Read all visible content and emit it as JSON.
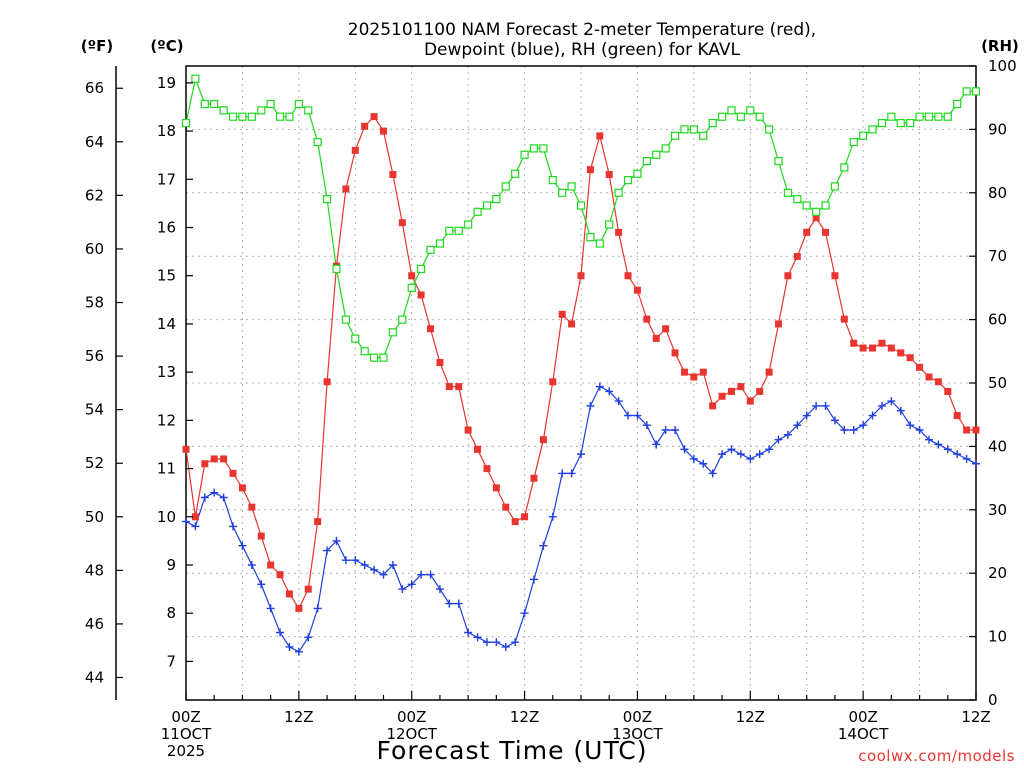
{
  "chart_data": {
    "type": "line",
    "title": "2025101100 NAM Forecast 2-meter Temperature (red), Dewpoint (blue), RH (green) for KAVL",
    "title_lines": [
      "2025101100 NAM Forecast 2-meter Temperature (red),",
      "Dewpoint (blue), RH (green) for KAVL"
    ],
    "xlabel": "Forecast Time (UTC)",
    "credit": "coolwx.com/models",
    "axis_units": {
      "fahrenheit": "(ºF)",
      "celsius": "(ºC)",
      "rh": "(RH)"
    },
    "x_unit": "forecast hour",
    "xlim": [
      0,
      84
    ],
    "x_ticks": [
      {
        "hour": 0,
        "lines": [
          "00Z",
          "11OCT",
          "2025"
        ]
      },
      {
        "hour": 12,
        "lines": [
          "12Z"
        ]
      },
      {
        "hour": 24,
        "lines": [
          "00Z",
          "12OCT"
        ]
      },
      {
        "hour": 36,
        "lines": [
          "12Z"
        ]
      },
      {
        "hour": 48,
        "lines": [
          "00Z",
          "13OCT"
        ]
      },
      {
        "hour": 60,
        "lines": [
          "12Z"
        ]
      },
      {
        "hour": 72,
        "lines": [
          "00Z",
          "14OCT"
        ]
      },
      {
        "hour": 84,
        "lines": [
          "12Z"
        ]
      }
    ],
    "y_left_f": {
      "ticks": [
        44,
        46,
        48,
        50,
        52,
        54,
        56,
        58,
        60,
        62,
        64,
        66
      ]
    },
    "y_left_c": {
      "ticks": [
        7,
        8,
        9,
        10,
        11,
        12,
        13,
        14,
        15,
        16,
        17,
        18,
        19
      ],
      "ylim": [
        6.2,
        19.35
      ]
    },
    "y_right_rh": {
      "ticks": [
        0,
        10,
        20,
        30,
        40,
        50,
        60,
        70,
        80,
        90,
        100
      ],
      "ylim": [
        0,
        100
      ]
    },
    "grid": true,
    "colors": {
      "temperature": "#e8352f",
      "dewpoint": "#1f3fe0",
      "rh": "#1fd81f",
      "grid": "#b4b4b4"
    },
    "series": [
      {
        "name": "Temperature",
        "axis": "celsius",
        "marker": "filled-square",
        "color": "#e8352f",
        "values": [
          [
            0,
            11.4
          ],
          [
            1,
            10.0
          ],
          [
            2,
            11.1
          ],
          [
            3,
            11.2
          ],
          [
            4,
            11.2
          ],
          [
            5,
            10.9
          ],
          [
            6,
            10.6
          ],
          [
            7,
            10.2
          ],
          [
            8,
            9.6
          ],
          [
            9,
            9.0
          ],
          [
            10,
            8.8
          ],
          [
            11,
            8.4
          ],
          [
            12,
            8.1
          ],
          [
            13,
            8.5
          ],
          [
            14,
            9.9
          ],
          [
            15,
            12.8
          ],
          [
            16,
            15.2
          ],
          [
            17,
            16.8
          ],
          [
            18,
            17.6
          ],
          [
            19,
            18.1
          ],
          [
            20,
            18.3
          ],
          [
            21,
            18.0
          ],
          [
            22,
            17.1
          ],
          [
            23,
            16.1
          ],
          [
            24,
            15.0
          ],
          [
            25,
            14.6
          ],
          [
            26,
            13.9
          ],
          [
            27,
            13.2
          ],
          [
            28,
            12.7
          ],
          [
            29,
            12.7
          ],
          [
            30,
            11.8
          ],
          [
            31,
            11.4
          ],
          [
            32,
            11.0
          ],
          [
            33,
            10.6
          ],
          [
            34,
            10.2
          ],
          [
            35,
            9.9
          ],
          [
            36,
            10.0
          ],
          [
            37,
            10.8
          ],
          [
            38,
            11.6
          ],
          [
            39,
            12.8
          ],
          [
            40,
            14.2
          ],
          [
            41,
            14.0
          ],
          [
            42,
            15.0
          ],
          [
            43,
            17.2
          ],
          [
            44,
            17.9
          ],
          [
            45,
            17.1
          ],
          [
            46,
            15.9
          ],
          [
            47,
            15.0
          ],
          [
            48,
            14.7
          ],
          [
            49,
            14.1
          ],
          [
            50,
            13.7
          ],
          [
            51,
            13.9
          ],
          [
            52,
            13.4
          ],
          [
            53,
            13.0
          ],
          [
            54,
            12.9
          ],
          [
            55,
            13.0
          ],
          [
            56,
            12.3
          ],
          [
            57,
            12.5
          ],
          [
            58,
            12.6
          ],
          [
            59,
            12.7
          ],
          [
            60,
            12.4
          ],
          [
            61,
            12.6
          ],
          [
            62,
            13.0
          ],
          [
            63,
            14.0
          ],
          [
            64,
            15.0
          ],
          [
            65,
            15.4
          ],
          [
            66,
            15.9
          ],
          [
            67,
            16.2
          ],
          [
            68,
            15.9
          ],
          [
            69,
            15.0
          ],
          [
            70,
            14.1
          ],
          [
            71,
            13.6
          ],
          [
            72,
            13.5
          ],
          [
            73,
            13.5
          ],
          [
            74,
            13.6
          ],
          [
            75,
            13.5
          ],
          [
            76,
            13.4
          ],
          [
            77,
            13.3
          ],
          [
            78,
            13.1
          ],
          [
            79,
            12.9
          ],
          [
            80,
            12.8
          ],
          [
            81,
            12.6
          ],
          [
            82,
            12.1
          ],
          [
            83,
            11.8
          ],
          [
            84,
            11.8
          ]
        ]
      },
      {
        "name": "Dewpoint",
        "axis": "celsius",
        "marker": "plus",
        "color": "#1f3fe0",
        "values": [
          [
            0,
            9.9
          ],
          [
            1,
            9.8
          ],
          [
            2,
            10.4
          ],
          [
            3,
            10.5
          ],
          [
            4,
            10.4
          ],
          [
            5,
            9.8
          ],
          [
            6,
            9.4
          ],
          [
            7,
            9.0
          ],
          [
            8,
            8.6
          ],
          [
            9,
            8.1
          ],
          [
            10,
            7.6
          ],
          [
            11,
            7.3
          ],
          [
            12,
            7.2
          ],
          [
            13,
            7.5
          ],
          [
            14,
            8.1
          ],
          [
            15,
            9.3
          ],
          [
            16,
            9.5
          ],
          [
            17,
            9.1
          ],
          [
            18,
            9.1
          ],
          [
            19,
            9.0
          ],
          [
            20,
            8.9
          ],
          [
            21,
            8.8
          ],
          [
            22,
            9.0
          ],
          [
            23,
            8.5
          ],
          [
            24,
            8.6
          ],
          [
            25,
            8.8
          ],
          [
            26,
            8.8
          ],
          [
            27,
            8.5
          ],
          [
            28,
            8.2
          ],
          [
            29,
            8.2
          ],
          [
            30,
            7.6
          ],
          [
            31,
            7.5
          ],
          [
            32,
            7.4
          ],
          [
            33,
            7.4
          ],
          [
            34,
            7.3
          ],
          [
            35,
            7.4
          ],
          [
            36,
            8.0
          ],
          [
            37,
            8.7
          ],
          [
            38,
            9.4
          ],
          [
            39,
            10.0
          ],
          [
            40,
            10.9
          ],
          [
            41,
            10.9
          ],
          [
            42,
            11.3
          ],
          [
            43,
            12.3
          ],
          [
            44,
            12.7
          ],
          [
            45,
            12.6
          ],
          [
            46,
            12.4
          ],
          [
            47,
            12.1
          ],
          [
            48,
            12.1
          ],
          [
            49,
            11.9
          ],
          [
            50,
            11.5
          ],
          [
            51,
            11.8
          ],
          [
            52,
            11.8
          ],
          [
            53,
            11.4
          ],
          [
            54,
            11.2
          ],
          [
            55,
            11.1
          ],
          [
            56,
            10.9
          ],
          [
            57,
            11.3
          ],
          [
            58,
            11.4
          ],
          [
            59,
            11.3
          ],
          [
            60,
            11.2
          ],
          [
            61,
            11.3
          ],
          [
            62,
            11.4
          ],
          [
            63,
            11.6
          ],
          [
            64,
            11.7
          ],
          [
            65,
            11.9
          ],
          [
            66,
            12.1
          ],
          [
            67,
            12.3
          ],
          [
            68,
            12.3
          ],
          [
            69,
            12.0
          ],
          [
            70,
            11.8
          ],
          [
            71,
            11.8
          ],
          [
            72,
            11.9
          ],
          [
            73,
            12.1
          ],
          [
            74,
            12.3
          ],
          [
            75,
            12.4
          ],
          [
            76,
            12.2
          ],
          [
            77,
            11.9
          ],
          [
            78,
            11.8
          ],
          [
            79,
            11.6
          ],
          [
            80,
            11.5
          ],
          [
            81,
            11.4
          ],
          [
            82,
            11.3
          ],
          [
            83,
            11.2
          ],
          [
            84,
            11.1
          ]
        ]
      },
      {
        "name": "RH",
        "axis": "rh",
        "marker": "open-square",
        "color": "#1fd81f",
        "values": [
          [
            0,
            91
          ],
          [
            1,
            98
          ],
          [
            2,
            94
          ],
          [
            3,
            94
          ],
          [
            4,
            93
          ],
          [
            5,
            92
          ],
          [
            6,
            92
          ],
          [
            7,
            92
          ],
          [
            8,
            93
          ],
          [
            9,
            94
          ],
          [
            10,
            92
          ],
          [
            11,
            92
          ],
          [
            12,
            94
          ],
          [
            13,
            93
          ],
          [
            14,
            88
          ],
          [
            15,
            79
          ],
          [
            16,
            68
          ],
          [
            17,
            60
          ],
          [
            18,
            57
          ],
          [
            19,
            55
          ],
          [
            20,
            54
          ],
          [
            21,
            54
          ],
          [
            22,
            58
          ],
          [
            23,
            60
          ],
          [
            24,
            65
          ],
          [
            25,
            68
          ],
          [
            26,
            71
          ],
          [
            27,
            72
          ],
          [
            28,
            74
          ],
          [
            29,
            74
          ],
          [
            30,
            75
          ],
          [
            31,
            77
          ],
          [
            32,
            78
          ],
          [
            33,
            79
          ],
          [
            34,
            81
          ],
          [
            35,
            83
          ],
          [
            36,
            86
          ],
          [
            37,
            87
          ],
          [
            38,
            87
          ],
          [
            39,
            82
          ],
          [
            40,
            80
          ],
          [
            41,
            81
          ],
          [
            42,
            78
          ],
          [
            43,
            73
          ],
          [
            44,
            72
          ],
          [
            45,
            75
          ],
          [
            46,
            80
          ],
          [
            47,
            82
          ],
          [
            48,
            83
          ],
          [
            49,
            85
          ],
          [
            50,
            86
          ],
          [
            51,
            87
          ],
          [
            52,
            89
          ],
          [
            53,
            90
          ],
          [
            54,
            90
          ],
          [
            55,
            89
          ],
          [
            56,
            91
          ],
          [
            57,
            92
          ],
          [
            58,
            93
          ],
          [
            59,
            92
          ],
          [
            60,
            93
          ],
          [
            61,
            92
          ],
          [
            62,
            90
          ],
          [
            63,
            85
          ],
          [
            64,
            80
          ],
          [
            65,
            79
          ],
          [
            66,
            78
          ],
          [
            67,
            77
          ],
          [
            68,
            78
          ],
          [
            69,
            81
          ],
          [
            70,
            84
          ],
          [
            71,
            88
          ],
          [
            72,
            89
          ],
          [
            73,
            90
          ],
          [
            74,
            91
          ],
          [
            75,
            92
          ],
          [
            76,
            91
          ],
          [
            77,
            91
          ],
          [
            78,
            92
          ],
          [
            79,
            92
          ],
          [
            80,
            92
          ],
          [
            81,
            92
          ],
          [
            82,
            94
          ],
          [
            83,
            96
          ],
          [
            84,
            96
          ]
        ]
      }
    ]
  }
}
